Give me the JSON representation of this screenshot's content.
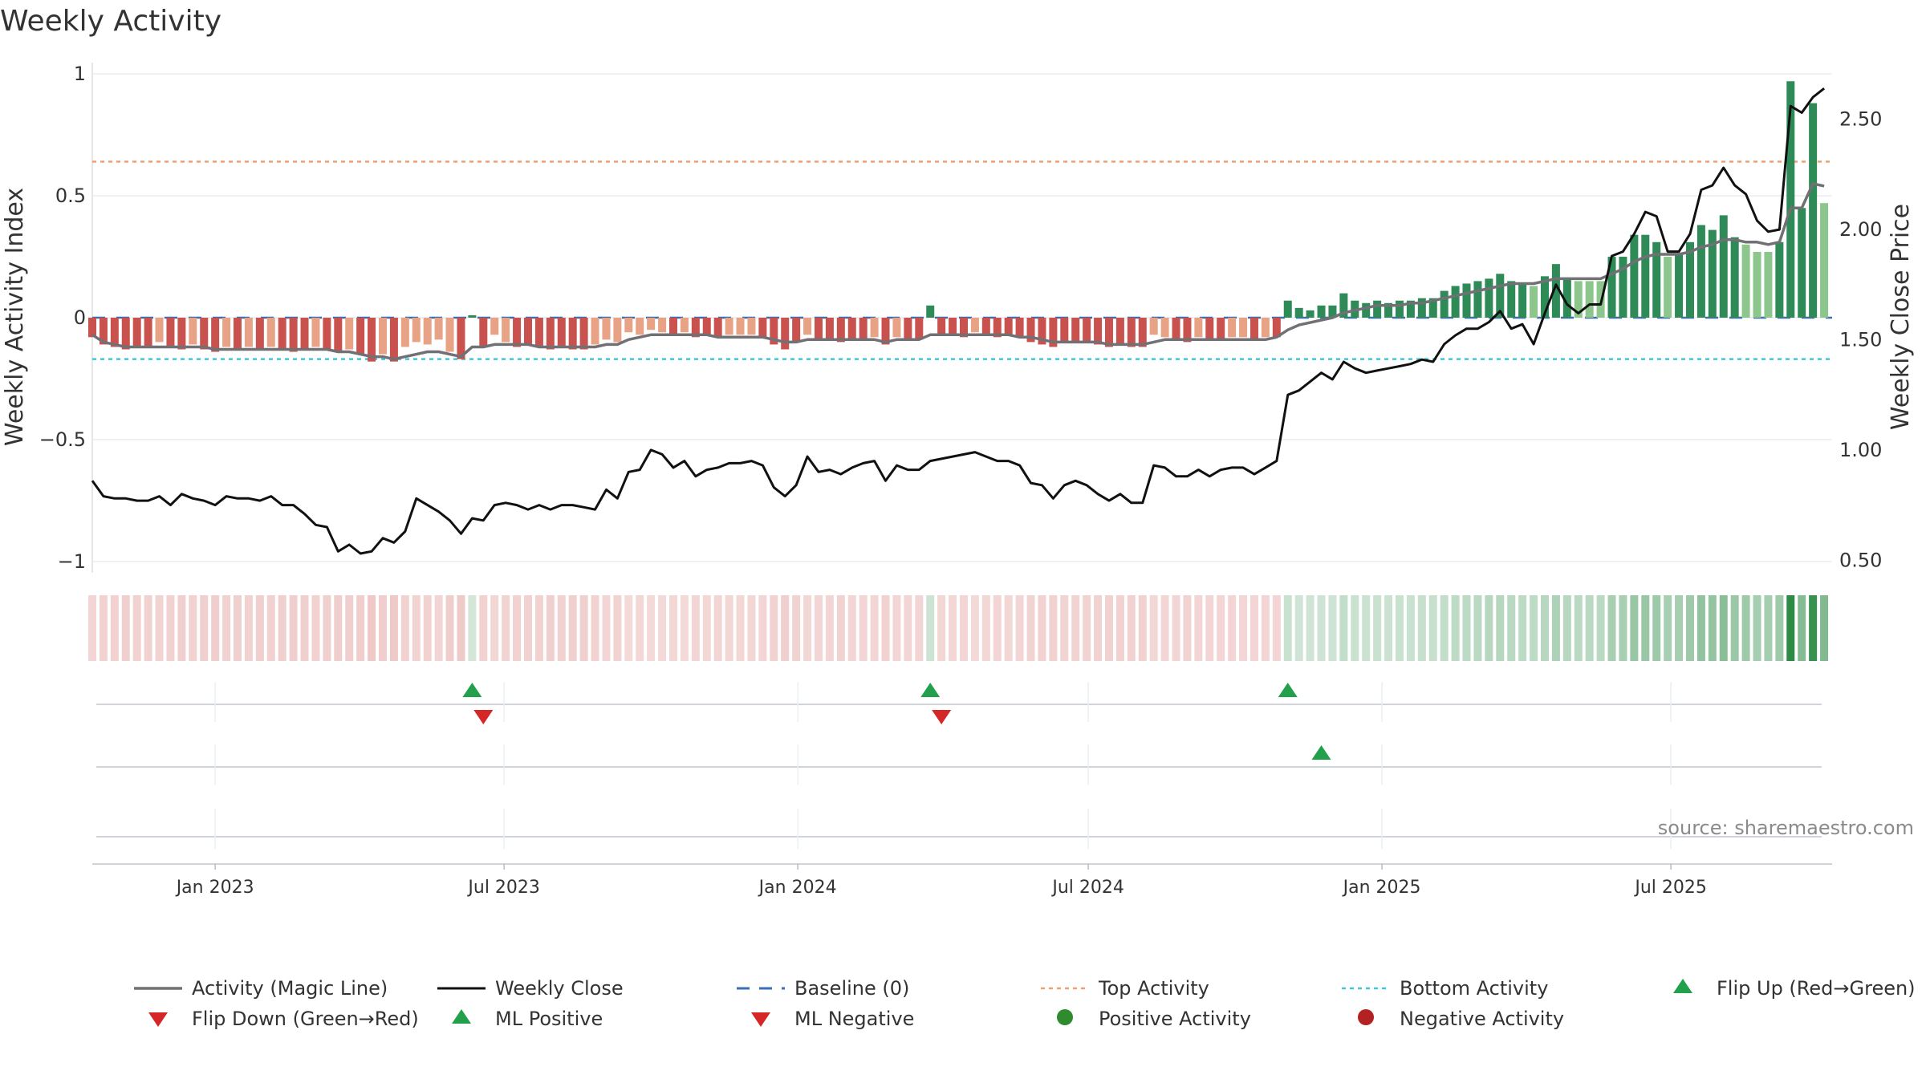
{
  "title": "Weekly Activity",
  "source_text": "source: sharemaestro.com",
  "colors": {
    "strong_red": "#c9524f",
    "light_red": "#e8a286",
    "strong_green": "#2e8b57",
    "light_green": "#8cc68c",
    "magic_line": "#707075",
    "close_line": "#111111",
    "baseline": "#3a6fb0",
    "top_line": "#f0a070",
    "bottom_line": "#3cc8d8",
    "marker_green": "#22a04b",
    "marker_red": "#d62728",
    "dot_green": "#2e8b2e",
    "dot_red": "#b22222"
  },
  "chart_data": {
    "type": "bar",
    "ylabel_left": "Weekly Activity Index",
    "ylabel_right": "Weekly Close Price",
    "left_ticks": [
      {
        "v": 1,
        "label": "1"
      },
      {
        "v": 0.5,
        "label": "0.5"
      },
      {
        "v": 0,
        "label": "0"
      },
      {
        "v": -0.5,
        "label": "−0.5"
      },
      {
        "v": -1,
        "label": "−1"
      }
    ],
    "right_ticks": [
      {
        "v": 2.5,
        "label": "2.50"
      },
      {
        "v": 2.0,
        "label": "2.00"
      },
      {
        "v": 1.5,
        "label": "1.50"
      },
      {
        "v": 1.0,
        "label": "1.00"
      },
      {
        "v": 0.5,
        "label": "0.50"
      }
    ],
    "left_ylim": [
      -1.04,
      1.04
    ],
    "right_ylim": [
      0.45,
      2.75
    ],
    "x_start": "2022-10-16",
    "x_end": "2025-10-10",
    "x_ticks": [
      {
        "date": "2023-01-01",
        "label": "Jan 2023"
      },
      {
        "date": "2023-07-01",
        "label": "Jul 2023"
      },
      {
        "date": "2024-01-01",
        "label": "Jan 2024"
      },
      {
        "date": "2024-07-01",
        "label": "Jul 2024"
      },
      {
        "date": "2025-01-01",
        "label": "Jan 2025"
      },
      {
        "date": "2025-07-01",
        "label": "Jul 2025"
      }
    ],
    "top_activity": 0.64,
    "bottom_activity": -0.17,
    "weeks": [
      {
        "date": "2022-10-16",
        "a": -0.08,
        "m": -0.07,
        "c": 0.86
      },
      {
        "date": "2022-10-23",
        "a": -0.11,
        "m": -0.1,
        "c": 0.79
      },
      {
        "date": "2022-10-30",
        "a": -0.12,
        "m": -0.11,
        "c": 0.78
      },
      {
        "date": "2022-11-06",
        "a": -0.13,
        "m": -0.12,
        "c": 0.78
      },
      {
        "date": "2022-11-13",
        "a": -0.12,
        "m": -0.12,
        "c": 0.77
      },
      {
        "date": "2022-11-20",
        "a": -0.12,
        "m": -0.12,
        "c": 0.77
      },
      {
        "date": "2022-11-27",
        "a": -0.1,
        "m": -0.12,
        "c": 0.79
      },
      {
        "date": "2022-12-04",
        "a": -0.12,
        "m": -0.12,
        "c": 0.75
      },
      {
        "date": "2022-12-11",
        "a": -0.13,
        "m": -0.12,
        "c": 0.8
      },
      {
        "date": "2022-12-18",
        "a": -0.11,
        "m": -0.12,
        "c": 0.78
      },
      {
        "date": "2022-12-25",
        "a": -0.13,
        "m": -0.12,
        "c": 0.77
      },
      {
        "date": "2023-01-01",
        "a": -0.14,
        "m": -0.13,
        "c": 0.75
      },
      {
        "date": "2023-01-08",
        "a": -0.12,
        "m": -0.13,
        "c": 0.79
      },
      {
        "date": "2023-01-15",
        "a": -0.13,
        "m": -0.13,
        "c": 0.78
      },
      {
        "date": "2023-01-22",
        "a": -0.12,
        "m": -0.13,
        "c": 0.78
      },
      {
        "date": "2023-01-29",
        "a": -0.13,
        "m": -0.13,
        "c": 0.77
      },
      {
        "date": "2023-02-05",
        "a": -0.12,
        "m": -0.13,
        "c": 0.79
      },
      {
        "date": "2023-02-12",
        "a": -0.13,
        "m": -0.13,
        "c": 0.75
      },
      {
        "date": "2023-02-19",
        "a": -0.14,
        "m": -0.13,
        "c": 0.75
      },
      {
        "date": "2023-02-26",
        "a": -0.13,
        "m": -0.13,
        "c": 0.71
      },
      {
        "date": "2023-03-05",
        "a": -0.12,
        "m": -0.13,
        "c": 0.66
      },
      {
        "date": "2023-03-12",
        "a": -0.13,
        "m": -0.13,
        "c": 0.65
      },
      {
        "date": "2023-03-19",
        "a": -0.14,
        "m": -0.14,
        "c": 0.54
      },
      {
        "date": "2023-03-26",
        "a": -0.13,
        "m": -0.14,
        "c": 0.57
      },
      {
        "date": "2023-04-02",
        "a": -0.15,
        "m": -0.15,
        "c": 0.53
      },
      {
        "date": "2023-04-09",
        "a": -0.18,
        "m": -0.16,
        "c": 0.54
      },
      {
        "date": "2023-04-16",
        "a": -0.15,
        "m": -0.16,
        "c": 0.6
      },
      {
        "date": "2023-04-23",
        "a": -0.18,
        "m": -0.17,
        "c": 0.58
      },
      {
        "date": "2023-04-30",
        "a": -0.12,
        "m": -0.16,
        "c": 0.63
      },
      {
        "date": "2023-05-07",
        "a": -0.1,
        "m": -0.15,
        "c": 0.78
      },
      {
        "date": "2023-05-14",
        "a": -0.11,
        "m": -0.14,
        "c": 0.75
      },
      {
        "date": "2023-05-21",
        "a": -0.09,
        "m": -0.14,
        "c": 0.72
      },
      {
        "date": "2023-05-28",
        "a": -0.14,
        "m": -0.15,
        "c": 0.68
      },
      {
        "date": "2023-06-04",
        "a": -0.17,
        "m": -0.16,
        "c": 0.62
      },
      {
        "date": "2023-06-11",
        "a": 0.01,
        "m": -0.12,
        "c": 0.69
      },
      {
        "date": "2023-06-18",
        "a": -0.12,
        "m": -0.12,
        "c": 0.68
      },
      {
        "date": "2023-06-25",
        "a": -0.07,
        "m": -0.11,
        "c": 0.75
      },
      {
        "date": "2023-07-02",
        "a": -0.1,
        "m": -0.11,
        "c": 0.76
      },
      {
        "date": "2023-07-09",
        "a": -0.12,
        "m": -0.11,
        "c": 0.75
      },
      {
        "date": "2023-07-16",
        "a": -0.11,
        "m": -0.11,
        "c": 0.73
      },
      {
        "date": "2023-07-23",
        "a": -0.12,
        "m": -0.12,
        "c": 0.75
      },
      {
        "date": "2023-07-30",
        "a": -0.13,
        "m": -0.12,
        "c": 0.73
      },
      {
        "date": "2023-08-06",
        "a": -0.12,
        "m": -0.12,
        "c": 0.75
      },
      {
        "date": "2023-08-13",
        "a": -0.13,
        "m": -0.12,
        "c": 0.75
      },
      {
        "date": "2023-08-20",
        "a": -0.13,
        "m": -0.12,
        "c": 0.74
      },
      {
        "date": "2023-08-27",
        "a": -0.11,
        "m": -0.12,
        "c": 0.73
      },
      {
        "date": "2023-09-03",
        "a": -0.09,
        "m": -0.11,
        "c": 0.82
      },
      {
        "date": "2023-09-10",
        "a": -0.1,
        "m": -0.11,
        "c": 0.78
      },
      {
        "date": "2023-09-17",
        "a": -0.06,
        "m": -0.09,
        "c": 0.9
      },
      {
        "date": "2023-09-24",
        "a": -0.07,
        "m": -0.08,
        "c": 0.91
      },
      {
        "date": "2023-10-01",
        "a": -0.05,
        "m": -0.07,
        "c": 1.0
      },
      {
        "date": "2023-10-08",
        "a": -0.06,
        "m": -0.07,
        "c": 0.98
      },
      {
        "date": "2023-10-15",
        "a": -0.07,
        "m": -0.07,
        "c": 0.92
      },
      {
        "date": "2023-10-22",
        "a": -0.06,
        "m": -0.07,
        "c": 0.95
      },
      {
        "date": "2023-10-29",
        "a": -0.08,
        "m": -0.07,
        "c": 0.88
      },
      {
        "date": "2023-11-05",
        "a": -0.07,
        "m": -0.07,
        "c": 0.91
      },
      {
        "date": "2023-11-12",
        "a": -0.08,
        "m": -0.08,
        "c": 0.92
      },
      {
        "date": "2023-11-19",
        "a": -0.07,
        "m": -0.08,
        "c": 0.94
      },
      {
        "date": "2023-11-26",
        "a": -0.07,
        "m": -0.08,
        "c": 0.94
      },
      {
        "date": "2023-12-03",
        "a": -0.07,
        "m": -0.08,
        "c": 0.95
      },
      {
        "date": "2023-12-10",
        "a": -0.08,
        "m": -0.08,
        "c": 0.93
      },
      {
        "date": "2023-12-17",
        "a": -0.11,
        "m": -0.09,
        "c": 0.83
      },
      {
        "date": "2023-12-24",
        "a": -0.13,
        "m": -0.1,
        "c": 0.79
      },
      {
        "date": "2023-12-31",
        "a": -0.1,
        "m": -0.1,
        "c": 0.84
      },
      {
        "date": "2024-01-07",
        "a": -0.07,
        "m": -0.09,
        "c": 0.97
      },
      {
        "date": "2024-01-14",
        "a": -0.09,
        "m": -0.09,
        "c": 0.9
      },
      {
        "date": "2024-01-21",
        "a": -0.09,
        "m": -0.09,
        "c": 0.91
      },
      {
        "date": "2024-01-28",
        "a": -0.1,
        "m": -0.09,
        "c": 0.89
      },
      {
        "date": "2024-02-04",
        "a": -0.09,
        "m": -0.09,
        "c": 0.92
      },
      {
        "date": "2024-02-11",
        "a": -0.09,
        "m": -0.09,
        "c": 0.94
      },
      {
        "date": "2024-02-18",
        "a": -0.08,
        "m": -0.09,
        "c": 0.95
      },
      {
        "date": "2024-02-25",
        "a": -0.11,
        "m": -0.1,
        "c": 0.86
      },
      {
        "date": "2024-03-03",
        "a": -0.08,
        "m": -0.09,
        "c": 0.93
      },
      {
        "date": "2024-03-10",
        "a": -0.09,
        "m": -0.09,
        "c": 0.91
      },
      {
        "date": "2024-03-17",
        "a": -0.09,
        "m": -0.09,
        "c": 0.91
      },
      {
        "date": "2024-03-24",
        "a": 0.05,
        "m": -0.07,
        "c": 0.95
      },
      {
        "date": "2024-03-31",
        "a": -0.07,
        "m": -0.07,
        "c": 0.96
      },
      {
        "date": "2024-04-07",
        "a": -0.07,
        "m": -0.07,
        "c": 0.97
      },
      {
        "date": "2024-04-14",
        "a": -0.08,
        "m": -0.07,
        "c": 0.98
      },
      {
        "date": "2024-04-21",
        "a": -0.06,
        "m": -0.07,
        "c": 0.99
      },
      {
        "date": "2024-04-28",
        "a": -0.07,
        "m": -0.07,
        "c": 0.97
      },
      {
        "date": "2024-05-05",
        "a": -0.08,
        "m": -0.07,
        "c": 0.95
      },
      {
        "date": "2024-05-12",
        "a": -0.07,
        "m": -0.07,
        "c": 0.95
      },
      {
        "date": "2024-05-19",
        "a": -0.08,
        "m": -0.08,
        "c": 0.93
      },
      {
        "date": "2024-05-26",
        "a": -0.1,
        "m": -0.08,
        "c": 0.85
      },
      {
        "date": "2024-06-02",
        "a": -0.11,
        "m": -0.09,
        "c": 0.84
      },
      {
        "date": "2024-06-09",
        "a": -0.12,
        "m": -0.1,
        "c": 0.78
      },
      {
        "date": "2024-06-16",
        "a": -0.1,
        "m": -0.1,
        "c": 0.84
      },
      {
        "date": "2024-06-23",
        "a": -0.1,
        "m": -0.1,
        "c": 0.86
      },
      {
        "date": "2024-06-30",
        "a": -0.1,
        "m": -0.1,
        "c": 0.84
      },
      {
        "date": "2024-07-07",
        "a": -0.11,
        "m": -0.1,
        "c": 0.8
      },
      {
        "date": "2024-07-14",
        "a": -0.12,
        "m": -0.11,
        "c": 0.77
      },
      {
        "date": "2024-07-21",
        "a": -0.11,
        "m": -0.11,
        "c": 0.8
      },
      {
        "date": "2024-07-28",
        "a": -0.12,
        "m": -0.11,
        "c": 0.76
      },
      {
        "date": "2024-08-04",
        "a": -0.12,
        "m": -0.11,
        "c": 0.76
      },
      {
        "date": "2024-08-11",
        "a": -0.07,
        "m": -0.1,
        "c": 0.93
      },
      {
        "date": "2024-08-18",
        "a": -0.08,
        "m": -0.09,
        "c": 0.92
      },
      {
        "date": "2024-08-25",
        "a": -0.09,
        "m": -0.09,
        "c": 0.88
      },
      {
        "date": "2024-09-01",
        "a": -0.1,
        "m": -0.09,
        "c": 0.88
      },
      {
        "date": "2024-09-08",
        "a": -0.08,
        "m": -0.09,
        "c": 0.91
      },
      {
        "date": "2024-09-15",
        "a": -0.09,
        "m": -0.09,
        "c": 0.88
      },
      {
        "date": "2024-09-22",
        "a": -0.09,
        "m": -0.09,
        "c": 0.91
      },
      {
        "date": "2024-09-29",
        "a": -0.08,
        "m": -0.09,
        "c": 0.92
      },
      {
        "date": "2024-10-06",
        "a": -0.08,
        "m": -0.09,
        "c": 0.92
      },
      {
        "date": "2024-10-13",
        "a": -0.09,
        "m": -0.09,
        "c": 0.89
      },
      {
        "date": "2024-10-20",
        "a": -0.08,
        "m": -0.09,
        "c": 0.92
      },
      {
        "date": "2024-10-27",
        "a": -0.08,
        "m": -0.08,
        "c": 0.95
      },
      {
        "date": "2024-11-03",
        "a": 0.07,
        "m": -0.05,
        "c": 1.25
      },
      {
        "date": "2024-11-10",
        "a": 0.04,
        "m": -0.03,
        "c": 1.27
      },
      {
        "date": "2024-11-17",
        "a": 0.03,
        "m": -0.02,
        "c": 1.31
      },
      {
        "date": "2024-11-24",
        "a": 0.05,
        "m": -0.01,
        "c": 1.35
      },
      {
        "date": "2024-12-01",
        "a": 0.05,
        "m": 0.0,
        "c": 1.32
      },
      {
        "date": "2024-12-08",
        "a": 0.1,
        "m": 0.02,
        "c": 1.4
      },
      {
        "date": "2024-12-15",
        "a": 0.07,
        "m": 0.03,
        "c": 1.37
      },
      {
        "date": "2024-12-22",
        "a": 0.06,
        "m": 0.04,
        "c": 1.35
      },
      {
        "date": "2024-12-29",
        "a": 0.07,
        "m": 0.05,
        "c": 1.36
      },
      {
        "date": "2025-01-05",
        "a": 0.06,
        "m": 0.05,
        "c": 1.37
      },
      {
        "date": "2025-01-12",
        "a": 0.07,
        "m": 0.05,
        "c": 1.38
      },
      {
        "date": "2025-01-19",
        "a": 0.07,
        "m": 0.06,
        "c": 1.39
      },
      {
        "date": "2025-01-26",
        "a": 0.08,
        "m": 0.06,
        "c": 1.41
      },
      {
        "date": "2025-02-02",
        "a": 0.08,
        "m": 0.07,
        "c": 1.4
      },
      {
        "date": "2025-02-09",
        "a": 0.11,
        "m": 0.08,
        "c": 1.48
      },
      {
        "date": "2025-02-16",
        "a": 0.13,
        "m": 0.09,
        "c": 1.52
      },
      {
        "date": "2025-02-23",
        "a": 0.14,
        "m": 0.1,
        "c": 1.55
      },
      {
        "date": "2025-03-02",
        "a": 0.15,
        "m": 0.11,
        "c": 1.55
      },
      {
        "date": "2025-03-09",
        "a": 0.16,
        "m": 0.12,
        "c": 1.58
      },
      {
        "date": "2025-03-16",
        "a": 0.18,
        "m": 0.13,
        "c": 1.63
      },
      {
        "date": "2025-03-23",
        "a": 0.15,
        "m": 0.14,
        "c": 1.55
      },
      {
        "date": "2025-03-30",
        "a": 0.14,
        "m": 0.14,
        "c": 1.57
      },
      {
        "date": "2025-04-06",
        "a": 0.13,
        "m": 0.14,
        "c": 1.48
      },
      {
        "date": "2025-04-13",
        "a": 0.17,
        "m": 0.15,
        "c": 1.62
      },
      {
        "date": "2025-04-20",
        "a": 0.22,
        "m": 0.16,
        "c": 1.75
      },
      {
        "date": "2025-04-27",
        "a": 0.16,
        "m": 0.16,
        "c": 1.66
      },
      {
        "date": "2025-05-04",
        "a": 0.15,
        "m": 0.16,
        "c": 1.62
      },
      {
        "date": "2025-05-11",
        "a": 0.15,
        "m": 0.16,
        "c": 1.66
      },
      {
        "date": "2025-05-18",
        "a": 0.15,
        "m": 0.16,
        "c": 1.66
      },
      {
        "date": "2025-05-25",
        "a": 0.25,
        "m": 0.18,
        "c": 1.88
      },
      {
        "date": "2025-06-01",
        "a": 0.25,
        "m": 0.2,
        "c": 1.9
      },
      {
        "date": "2025-06-08",
        "a": 0.34,
        "m": 0.23,
        "c": 1.98
      },
      {
        "date": "2025-06-15",
        "a": 0.34,
        "m": 0.25,
        "c": 2.08
      },
      {
        "date": "2025-06-22",
        "a": 0.31,
        "m": 0.26,
        "c": 2.06
      },
      {
        "date": "2025-06-29",
        "a": 0.25,
        "m": 0.26,
        "c": 1.9
      },
      {
        "date": "2025-07-06",
        "a": 0.26,
        "m": 0.26,
        "c": 1.9
      },
      {
        "date": "2025-07-13",
        "a": 0.31,
        "m": 0.27,
        "c": 1.98
      },
      {
        "date": "2025-07-20",
        "a": 0.38,
        "m": 0.29,
        "c": 2.18
      },
      {
        "date": "2025-07-27",
        "a": 0.36,
        "m": 0.3,
        "c": 2.2
      },
      {
        "date": "2025-08-03",
        "a": 0.42,
        "m": 0.32,
        "c": 2.28
      },
      {
        "date": "2025-08-10",
        "a": 0.33,
        "m": 0.32,
        "c": 2.2
      },
      {
        "date": "2025-08-17",
        "a": 0.3,
        "m": 0.31,
        "c": 2.16
      },
      {
        "date": "2025-08-24",
        "a": 0.27,
        "m": 0.31,
        "c": 2.04
      },
      {
        "date": "2025-08-31",
        "a": 0.27,
        "m": 0.3,
        "c": 1.99
      },
      {
        "date": "2025-09-07",
        "a": 0.31,
        "m": 0.31,
        "c": 2.0
      },
      {
        "date": "2025-09-14",
        "a": 0.97,
        "m": 0.45,
        "c": 2.56
      },
      {
        "date": "2025-09-21",
        "a": 0.45,
        "m": 0.45,
        "c": 2.53
      },
      {
        "date": "2025-09-28",
        "a": 0.88,
        "m": 0.55,
        "c": 2.6
      },
      {
        "date": "2025-10-05",
        "a": 0.47,
        "m": 0.54,
        "c": 2.64
      }
    ],
    "flip_up": [
      "2023-06-11",
      "2024-03-24",
      "2024-11-03"
    ],
    "flip_down": [
      "2023-06-18",
      "2024-03-31"
    ],
    "ml_positive": [
      "2024-11-24"
    ],
    "ml_negative": [],
    "positive_activity": [],
    "negative_activity": []
  },
  "legend": [
    {
      "key": "magic",
      "label": "Activity (Magic Line)"
    },
    {
      "key": "close",
      "label": "Weekly Close"
    },
    {
      "key": "baseline",
      "label": "Baseline (0)"
    },
    {
      "key": "top",
      "label": "Top Activity"
    },
    {
      "key": "bottom",
      "label": "Bottom Activity"
    },
    {
      "key": "flipup",
      "label": "Flip Up (Red→Green)"
    },
    {
      "key": "flipdown",
      "label": "Flip Down (Green→Red)"
    },
    {
      "key": "mlpos",
      "label": "ML Positive"
    },
    {
      "key": "mlneg",
      "label": "ML Negative"
    },
    {
      "key": "posact",
      "label": "Positive Activity"
    },
    {
      "key": "negact",
      "label": "Negative Activity"
    }
  ]
}
